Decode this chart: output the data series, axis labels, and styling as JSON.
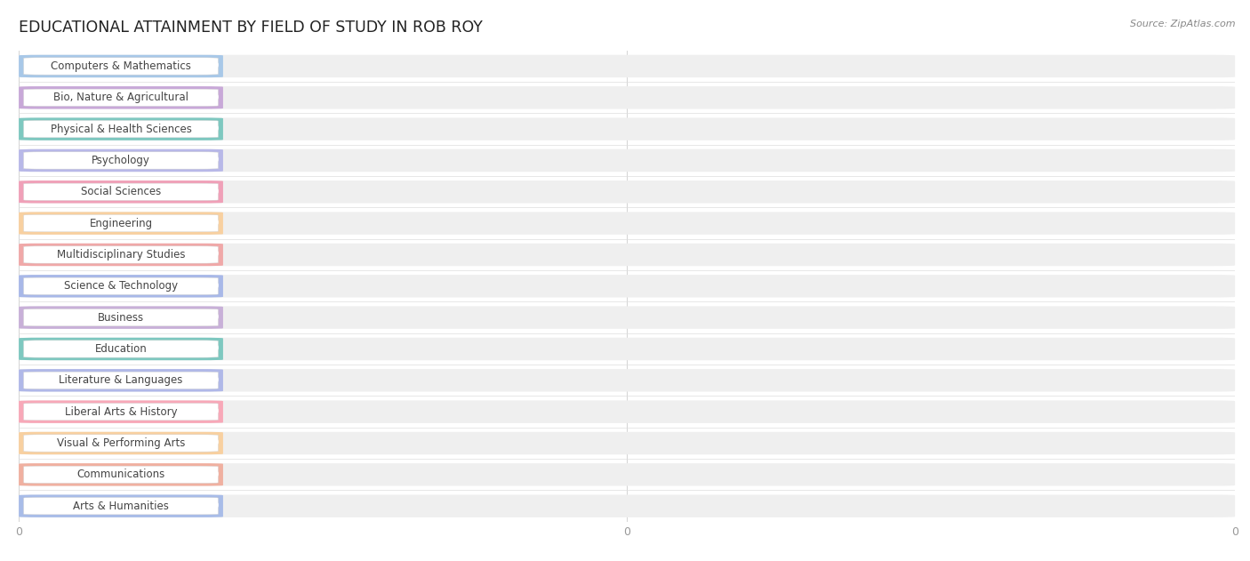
{
  "title": "EDUCATIONAL ATTAINMENT BY FIELD OF STUDY IN ROB ROY",
  "source": "Source: ZipAtlas.com",
  "categories": [
    "Computers & Mathematics",
    "Bio, Nature & Agricultural",
    "Physical & Health Sciences",
    "Psychology",
    "Social Sciences",
    "Engineering",
    "Multidisciplinary Studies",
    "Science & Technology",
    "Business",
    "Education",
    "Literature & Languages",
    "Liberal Arts & History",
    "Visual & Performing Arts",
    "Communications",
    "Arts & Humanities"
  ],
  "values": [
    0,
    0,
    0,
    0,
    0,
    0,
    0,
    0,
    0,
    0,
    0,
    0,
    0,
    0,
    0
  ],
  "bar_colors": [
    "#a8c8e8",
    "#c8a8d8",
    "#7ec8c0",
    "#b8b8e8",
    "#f0a0b8",
    "#f8d0a0",
    "#f0a8a8",
    "#a8b8e8",
    "#c8b0d8",
    "#7ec8c0",
    "#b0b8e8",
    "#f8a8b8",
    "#f8d0a0",
    "#f0b0a0",
    "#a8bce8"
  ],
  "bg_color": "#f8f8f8",
  "bar_bg_color": "#efefef",
  "title_fontsize": 12.5,
  "label_fontsize": 8.5,
  "tick_fontsize": 9,
  "background_color": "#ffffff"
}
